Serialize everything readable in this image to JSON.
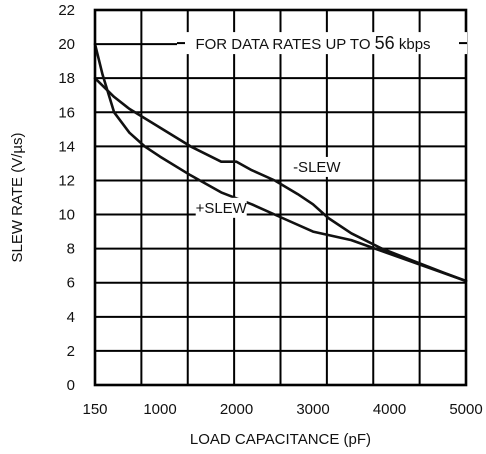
{
  "chart_data": {
    "type": "line",
    "title": "",
    "xlabel": "LOAD CAPACITANCE (pF)",
    "ylabel": "SLEW RATE (V/µs)",
    "xlim": [
      150,
      5000
    ],
    "ylim": [
      0,
      22
    ],
    "grid": true,
    "x_ticks": [
      150,
      1000,
      2000,
      3000,
      4000,
      5000
    ],
    "x_tick_labels": [
      "150",
      "1000",
      "2000",
      "3000",
      "4000",
      "5000"
    ],
    "y_ticks": [
      0,
      2,
      4,
      6,
      8,
      10,
      12,
      14,
      16,
      18,
      20,
      22
    ],
    "y_tick_labels": [
      "0",
      "2",
      "4",
      "6",
      "8",
      "10",
      "12",
      "14",
      "16",
      "18",
      "20",
      "22"
    ],
    "annotation": {
      "prefix": "FOR DATA RATES UP TO ",
      "number": "56",
      "suffix": " kbps",
      "x": 3000,
      "y": 20
    },
    "series": [
      {
        "name": "-SLEW",
        "label_at": [
          3050,
          12.5
        ],
        "x": [
          150,
          400,
          600,
          1000,
          1400,
          1800,
          2000,
          2200,
          2500,
          2800,
          3000,
          3200,
          3500,
          3900,
          4300,
          4700,
          5000
        ],
        "y": [
          18,
          16.9,
          16.2,
          15.1,
          14.0,
          13.1,
          13.1,
          12.6,
          12.0,
          11.2,
          10.6,
          9.8,
          8.9,
          8.0,
          7.3,
          6.6,
          6.1
        ]
      },
      {
        "name": "+SLEW",
        "label_at": [
          1800,
          10.1
        ],
        "x": [
          150,
          250,
          400,
          600,
          800,
          1000,
          1400,
          1800,
          2200,
          2600,
          3000,
          3500,
          4000,
          4500,
          5000
        ],
        "y": [
          20,
          18.2,
          16.0,
          14.8,
          14.0,
          13.4,
          12.3,
          11.3,
          10.6,
          9.8,
          9.0,
          8.5,
          7.7,
          6.9,
          6.1
        ]
      }
    ]
  }
}
